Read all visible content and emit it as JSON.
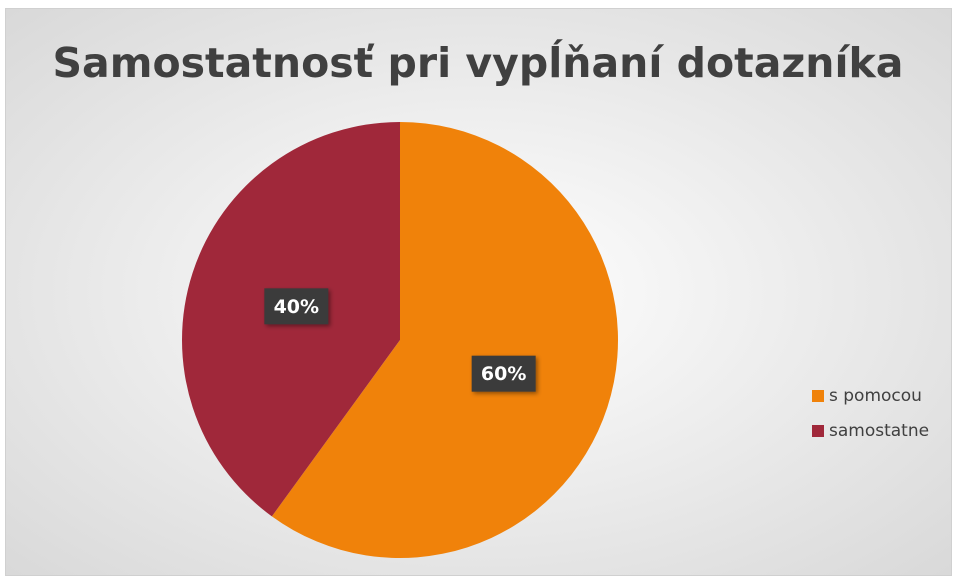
{
  "chart_data": {
    "type": "pie",
    "title": "Samostatnosť pri vypĺňaní dotazníka",
    "categories": [
      "s pomocou",
      "samostatne"
    ],
    "values": [
      60,
      40
    ],
    "value_labels": [
      "60%",
      "40%"
    ],
    "colors": [
      "#f0820a",
      "#a0283a"
    ],
    "legend": "right"
  }
}
